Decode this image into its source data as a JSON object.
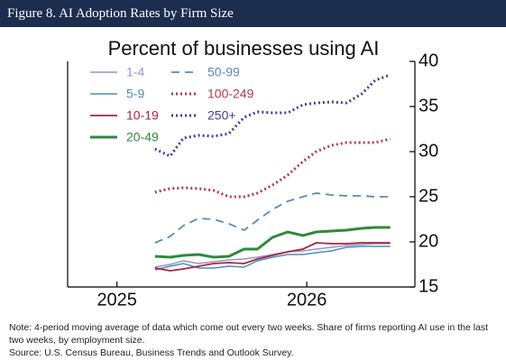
{
  "figure_title": "Figure 8. AI Adoption Rates by Firm Size",
  "note": "Note: 4-period moving average of data which come out every two weeks. Share of firms reporting AI use in the last two weeks, by employment size.",
  "source": "Source: U.S. Census Bureau, Business Trends and Outlook Survey.",
  "chart_data": {
    "type": "line",
    "title": "Percent of businesses using AI",
    "x": [
      2025.2,
      2025.28,
      2025.35,
      2025.43,
      2025.51,
      2025.59,
      2025.67,
      2025.74,
      2025.82,
      2025.9,
      2025.98,
      2026.05,
      2026.13,
      2026.21,
      2026.29,
      2026.36,
      2026.44
    ],
    "series": [
      {
        "name": "1-4",
        "color": "#9b92c9",
        "dash": "solid",
        "width": 1.5,
        "values": [
          17.2,
          17.5,
          17.9,
          17.6,
          17.8,
          18.0,
          18.1,
          18.3,
          18.6,
          18.9,
          19.0,
          19.2,
          19.4,
          19.6,
          19.7,
          19.8,
          19.8
        ]
      },
      {
        "name": "50-99",
        "color": "#5a8ab5",
        "dash": "dashed",
        "width": 1.8,
        "values": [
          19.9,
          20.6,
          21.8,
          22.6,
          22.5,
          22.0,
          21.3,
          22.4,
          23.6,
          24.5,
          25.0,
          25.4,
          25.2,
          25.1,
          25.1,
          25.0,
          25.0
        ]
      },
      {
        "name": "5-9",
        "color": "#4a8fb8",
        "dash": "solid",
        "width": 1.5,
        "values": [
          16.9,
          17.3,
          17.6,
          17.1,
          17.1,
          17.3,
          17.2,
          17.9,
          18.3,
          18.6,
          18.6,
          18.8,
          19.0,
          19.4,
          19.5,
          19.5,
          19.5
        ]
      },
      {
        "name": "100-249",
        "color": "#b23a4a",
        "dash": "dotted",
        "width": 3,
        "values": [
          25.5,
          25.9,
          26.0,
          25.9,
          25.7,
          25.0,
          25.0,
          25.4,
          26.3,
          27.4,
          28.9,
          30.0,
          30.7,
          31.0,
          31.0,
          31.0,
          31.4
        ]
      },
      {
        "name": "10-19",
        "color": "#a8253f",
        "dash": "solid",
        "width": 1.8,
        "values": [
          17.1,
          16.8,
          17.0,
          17.3,
          17.6,
          17.7,
          17.6,
          18.1,
          18.5,
          18.9,
          19.2,
          19.9,
          19.8,
          19.8,
          19.9,
          19.9,
          19.9
        ]
      },
      {
        "name": "250+",
        "color": "#4a3b9c",
        "dash": "dotted",
        "width": 3,
        "values": [
          30.3,
          29.5,
          31.5,
          31.8,
          31.7,
          32.0,
          33.8,
          34.4,
          34.3,
          34.3,
          35.2,
          35.4,
          35.5,
          35.4,
          36.4,
          37.9,
          38.5
        ]
      },
      {
        "name": "20-49",
        "color": "#2e8a3c",
        "dash": "solid",
        "width": 3,
        "values": [
          18.4,
          18.3,
          18.5,
          18.6,
          18.3,
          18.4,
          19.2,
          19.2,
          20.5,
          21.1,
          20.7,
          21.1,
          21.2,
          21.3,
          21.5,
          21.6,
          21.6
        ]
      }
    ],
    "xlim": [
      2024.74,
      2026.57
    ],
    "xticks": [
      2025,
      2026
    ],
    "ylim": [
      15,
      40
    ],
    "yticks": [
      15,
      20,
      25,
      30,
      35,
      40
    ],
    "legend": "upper-left"
  }
}
